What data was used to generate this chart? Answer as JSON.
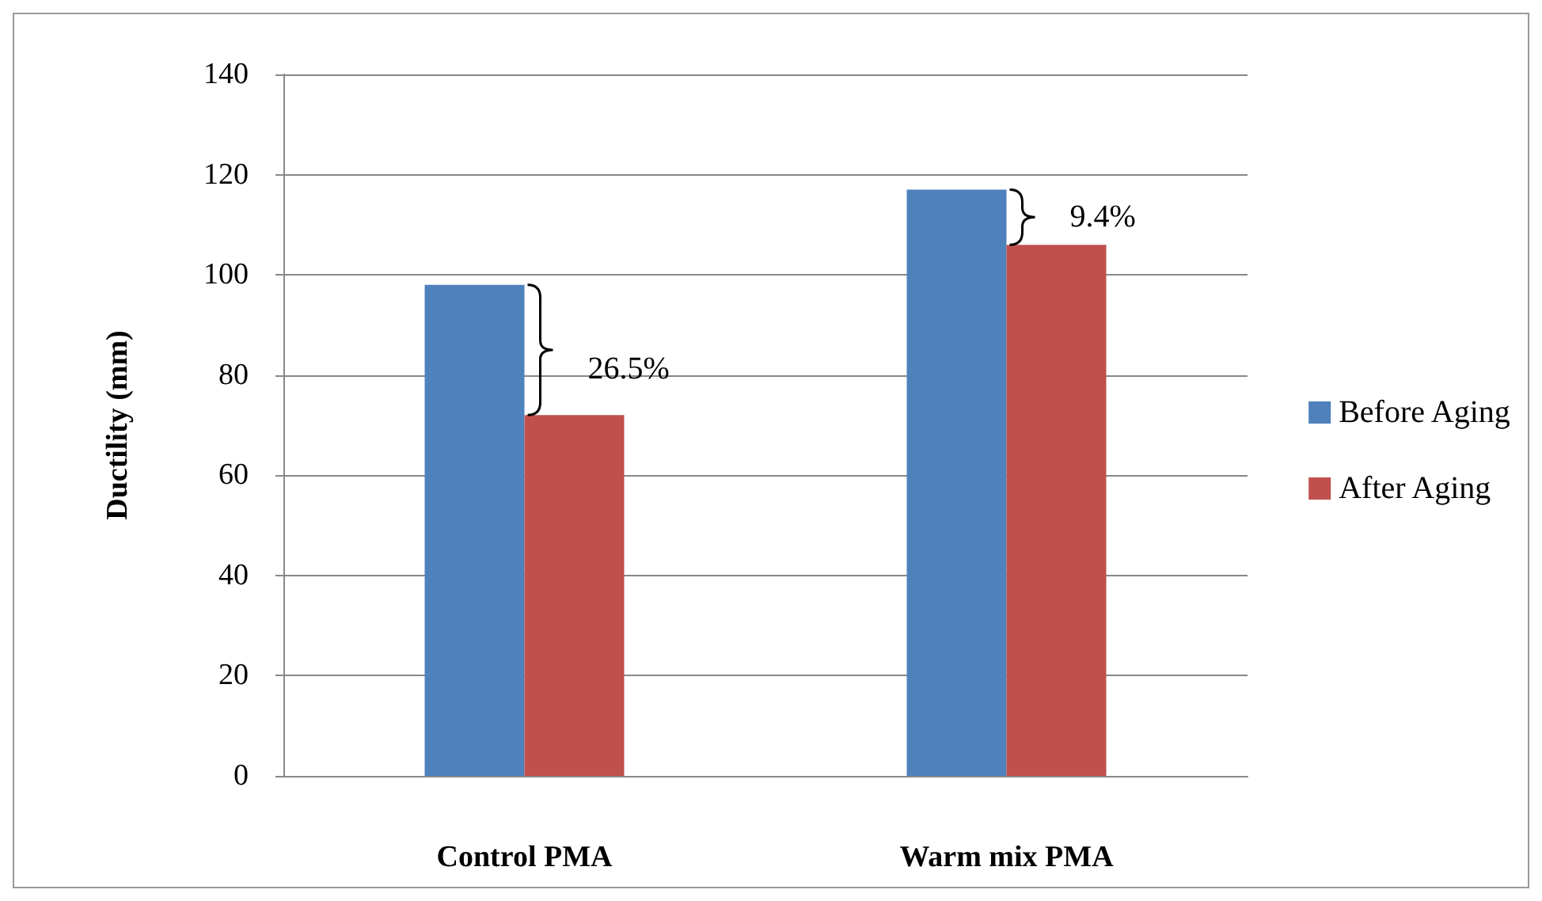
{
  "chart_data": {
    "type": "bar",
    "ylabel": "Ductility (mm)",
    "categories": [
      "Control PMA",
      "Warm mix PMA"
    ],
    "series": [
      {
        "name": "Before Aging",
        "color": "#4f81bd",
        "values": [
          98,
          117
        ]
      },
      {
        "name": "After Aging",
        "color": "#c0504d",
        "values": [
          72,
          106
        ]
      }
    ],
    "ylim": [
      0,
      140
    ],
    "yticks": [
      0,
      20,
      40,
      60,
      80,
      100,
      120,
      140
    ],
    "grid": "y",
    "legend": "right",
    "annotations": [
      "26.5%",
      "9.4%"
    ]
  }
}
